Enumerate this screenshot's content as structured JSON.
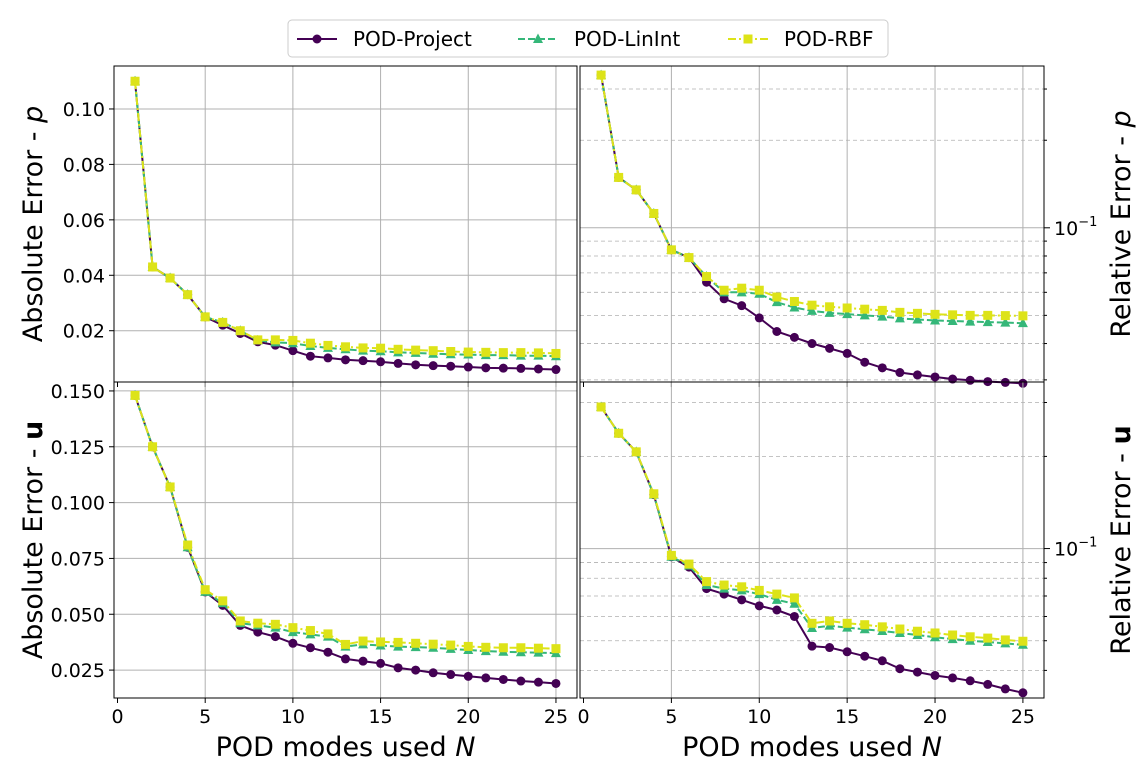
{
  "legend": {
    "placement": "top-center",
    "entries": [
      {
        "label": "POD-Project",
        "color": "#440154",
        "marker": "circle",
        "linestyle": "solid"
      },
      {
        "label": "POD-LinInt",
        "color": "#35b779",
        "marker": "triangle",
        "linestyle": "dashed"
      },
      {
        "label": "POD-RBF",
        "color": "#dde318",
        "marker": "square",
        "linestyle": "dashdot"
      }
    ]
  },
  "xlabel": "POD modes used N",
  "chart_data": [
    {
      "type": "line",
      "panel": "top-left",
      "ylabel": "Absolute Error - p",
      "yscale": "linear",
      "xlim": [
        -0.2,
        26.2
      ],
      "ylim": [
        0.0015,
        0.1155
      ],
      "xticks": [
        0,
        5,
        10,
        15,
        20,
        25
      ],
      "yticks": [
        0.02,
        0.04,
        0.06,
        0.08,
        0.1
      ],
      "ytick_labels": [
        "0.02",
        "0.04",
        "0.06",
        "0.08",
        "0.10"
      ],
      "grid": true,
      "x": [
        1,
        2,
        3,
        4,
        5,
        6,
        7,
        8,
        9,
        10,
        11,
        12,
        13,
        14,
        15,
        16,
        17,
        18,
        19,
        20,
        21,
        22,
        23,
        24,
        25
      ],
      "series": [
        {
          "name": "POD-Project",
          "values": [
            0.11,
            0.043,
            0.039,
            0.033,
            0.025,
            0.022,
            0.019,
            0.016,
            0.0148,
            0.0128,
            0.0108,
            0.0102,
            0.0095,
            0.0092,
            0.0088,
            0.0082,
            0.0077,
            0.0074,
            0.0072,
            0.0069,
            0.0066,
            0.0065,
            0.0064,
            0.0062,
            0.006
          ]
        },
        {
          "name": "POD-LinInt",
          "values": [
            0.11,
            0.043,
            0.039,
            0.033,
            0.025,
            0.023,
            0.02,
            0.0165,
            0.0158,
            0.0155,
            0.0145,
            0.0138,
            0.0133,
            0.0128,
            0.0126,
            0.0122,
            0.012,
            0.0117,
            0.0115,
            0.0114,
            0.0112,
            0.0112,
            0.011,
            0.011,
            0.0108
          ]
        },
        {
          "name": "POD-RBF",
          "values": [
            0.11,
            0.043,
            0.039,
            0.033,
            0.025,
            0.023,
            0.02,
            0.0167,
            0.0167,
            0.0165,
            0.0155,
            0.0147,
            0.0142,
            0.0138,
            0.0137,
            0.0133,
            0.013,
            0.0128,
            0.0125,
            0.0123,
            0.0122,
            0.0121,
            0.0121,
            0.012,
            0.0118
          ]
        }
      ]
    },
    {
      "type": "line",
      "panel": "top-right",
      "ylabel": "Relative Error - p",
      "yscale": "log",
      "xlim": [
        -0.2,
        26.2
      ],
      "ylim": [
        0.0295,
        0.36
      ],
      "xticks": [
        0,
        5,
        10,
        15,
        20,
        25
      ],
      "yticks_major": [
        0.1
      ],
      "ytick_labels": [
        "10^-1"
      ],
      "yticks_minor": [
        0.03,
        0.04,
        0.05,
        0.06,
        0.07,
        0.08,
        0.09,
        0.2,
        0.3
      ],
      "grid": true,
      "x": [
        1,
        2,
        3,
        4,
        5,
        6,
        7,
        8,
        9,
        10,
        11,
        12,
        13,
        14,
        15,
        16,
        17,
        18,
        19,
        20,
        21,
        22,
        23,
        24,
        25
      ],
      "series": [
        {
          "name": "POD-Project",
          "values": [
            0.335,
            0.149,
            0.135,
            0.112,
            0.084,
            0.079,
            0.065,
            0.057,
            0.054,
            0.049,
            0.044,
            0.042,
            0.04,
            0.0385,
            0.037,
            0.0345,
            0.033,
            0.0318,
            0.0312,
            0.0307,
            0.0302,
            0.0299,
            0.0296,
            0.0294,
            0.0292
          ]
        },
        {
          "name": "POD-LinInt",
          "values": [
            0.335,
            0.149,
            0.135,
            0.112,
            0.084,
            0.079,
            0.068,
            0.06,
            0.06,
            0.0593,
            0.0555,
            0.0532,
            0.0518,
            0.051,
            0.0505,
            0.05,
            0.0495,
            0.0488,
            0.0484,
            0.048,
            0.0478,
            0.0476,
            0.0474,
            0.0472,
            0.047
          ]
        },
        {
          "name": "POD-RBF",
          "values": [
            0.335,
            0.149,
            0.135,
            0.112,
            0.084,
            0.079,
            0.068,
            0.061,
            0.062,
            0.061,
            0.0578,
            0.0558,
            0.0542,
            0.0535,
            0.053,
            0.0525,
            0.052,
            0.0512,
            0.0508,
            0.0504,
            0.0502,
            0.05,
            0.05,
            0.0499,
            0.0498
          ]
        }
      ]
    },
    {
      "type": "line",
      "panel": "bottom-left",
      "ylabel": "Absolute Error - u",
      "yscale": "linear",
      "xlim": [
        -0.2,
        26.2
      ],
      "ylim": [
        0.0125,
        0.154
      ],
      "xticks": [
        0,
        5,
        10,
        15,
        20,
        25
      ],
      "yticks": [
        0.025,
        0.05,
        0.075,
        0.1,
        0.125,
        0.15
      ],
      "ytick_labels": [
        "0.025",
        "0.050",
        "0.075",
        "0.100",
        "0.125",
        "0.150"
      ],
      "grid": true,
      "x": [
        1,
        2,
        3,
        4,
        5,
        6,
        7,
        8,
        9,
        10,
        11,
        12,
        13,
        14,
        15,
        16,
        17,
        18,
        19,
        20,
        21,
        22,
        23,
        24,
        25
      ],
      "series": [
        {
          "name": "POD-Project",
          "values": [
            0.148,
            0.125,
            0.107,
            0.08,
            0.06,
            0.054,
            0.045,
            0.042,
            0.04,
            0.037,
            0.035,
            0.033,
            0.03,
            0.029,
            0.028,
            0.026,
            0.025,
            0.0238,
            0.023,
            0.0222,
            0.0215,
            0.0208,
            0.0201,
            0.0196,
            0.019
          ]
        },
        {
          "name": "POD-LinInt",
          "values": [
            0.148,
            0.125,
            0.107,
            0.08,
            0.06,
            0.055,
            0.046,
            0.045,
            0.044,
            0.042,
            0.041,
            0.04,
            0.0355,
            0.0365,
            0.036,
            0.0355,
            0.0353,
            0.035,
            0.0345,
            0.034,
            0.0335,
            0.0332,
            0.033,
            0.0328,
            0.0326
          ]
        },
        {
          "name": "POD-RBF",
          "values": [
            0.148,
            0.125,
            0.107,
            0.081,
            0.061,
            0.056,
            0.047,
            0.046,
            0.0455,
            0.044,
            0.0427,
            0.0412,
            0.0365,
            0.038,
            0.0376,
            0.0374,
            0.037,
            0.0366,
            0.0362,
            0.0356,
            0.0352,
            0.035,
            0.035,
            0.0348,
            0.0346
          ]
        }
      ]
    },
    {
      "type": "line",
      "panel": "bottom-right",
      "ylabel": "Relative Error - u",
      "yscale": "log",
      "xlim": [
        -0.2,
        26.2
      ],
      "ylim": [
        0.0325,
        0.35
      ],
      "xticks": [
        0,
        5,
        10,
        15,
        20,
        25
      ],
      "xtick_labels": [
        "0",
        "5",
        "10",
        "15",
        "20",
        "25"
      ],
      "yticks_major": [
        0.1
      ],
      "ytick_labels": [
        "10^-1"
      ],
      "yticks_minor": [
        0.04,
        0.05,
        0.06,
        0.07,
        0.08,
        0.09,
        0.2,
        0.3
      ],
      "grid": true,
      "x": [
        1,
        2,
        3,
        4,
        5,
        6,
        7,
        8,
        9,
        10,
        11,
        12,
        13,
        14,
        15,
        16,
        17,
        18,
        19,
        20,
        21,
        22,
        23,
        24,
        25
      ],
      "series": [
        {
          "name": "POD-Project",
          "values": [
            0.29,
            0.238,
            0.207,
            0.15,
            0.094,
            0.087,
            0.074,
            0.071,
            0.068,
            0.065,
            0.063,
            0.06,
            0.048,
            0.0475,
            0.046,
            0.0445,
            0.043,
            0.0405,
            0.0395,
            0.0385,
            0.0378,
            0.037,
            0.036,
            0.0348,
            0.0338
          ]
        },
        {
          "name": "POD-LinInt",
          "values": [
            0.29,
            0.238,
            0.207,
            0.15,
            0.094,
            0.088,
            0.076,
            0.074,
            0.073,
            0.071,
            0.068,
            0.066,
            0.055,
            0.056,
            0.0552,
            0.0545,
            0.0538,
            0.053,
            0.0522,
            0.0513,
            0.0506,
            0.05,
            0.0495,
            0.049,
            0.0485
          ]
        },
        {
          "name": "POD-RBF",
          "values": [
            0.29,
            0.238,
            0.207,
            0.151,
            0.095,
            0.089,
            0.078,
            0.076,
            0.075,
            0.073,
            0.071,
            0.069,
            0.057,
            0.058,
            0.057,
            0.0564,
            0.0555,
            0.0546,
            0.0537,
            0.053,
            0.0522,
            0.0515,
            0.051,
            0.0503,
            0.0498
          ]
        }
      ]
    }
  ]
}
